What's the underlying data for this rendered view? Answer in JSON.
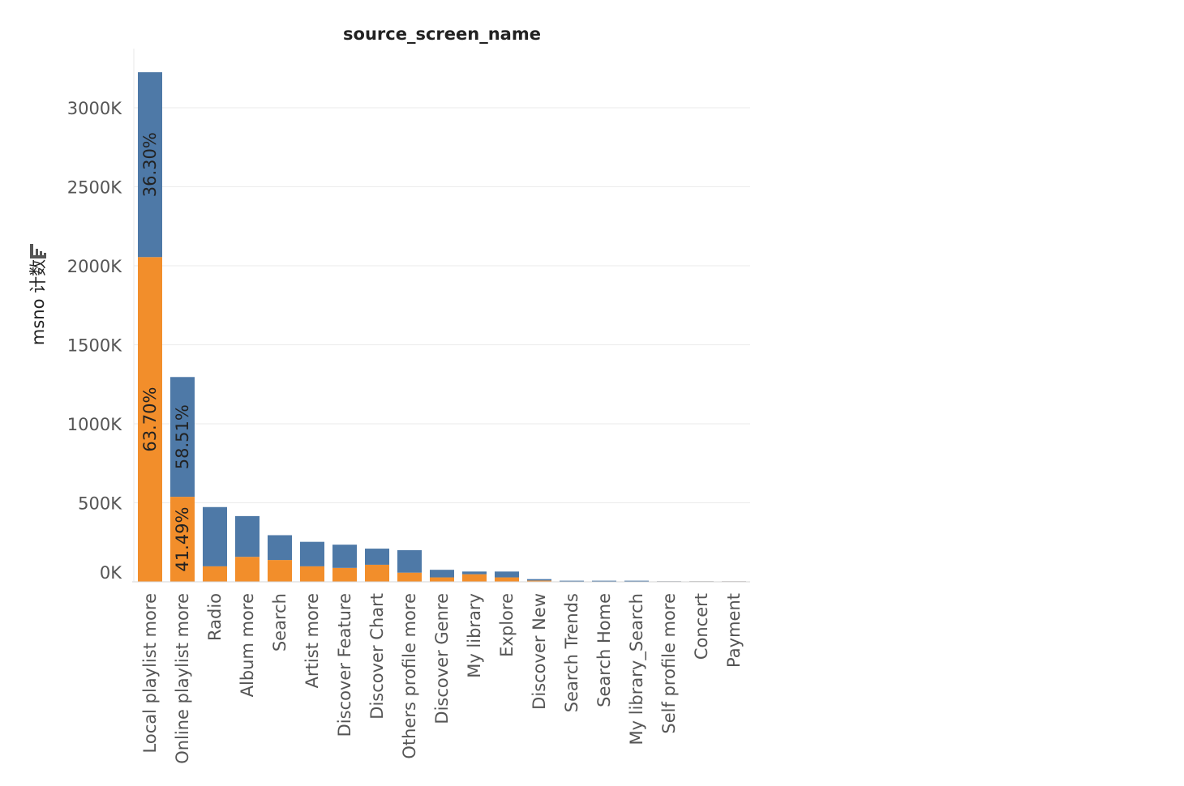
{
  "chart_data": {
    "type": "bar",
    "stacked": true,
    "title": "source_screen_name",
    "ylabel": "msno 计数",
    "xlabel": "",
    "ylim": [
      0,
      3300000
    ],
    "yticks": [
      0,
      500000,
      1000000,
      1500000,
      2000000,
      2500000,
      3000000
    ],
    "ytick_labels": [
      "0K",
      "500K",
      "1000K",
      "1500K",
      "2000K",
      "2500K",
      "3000K"
    ],
    "grid": true,
    "categories": [
      "Local playlist more",
      "Online playlist more",
      "Radio",
      "Album more",
      "Search",
      "Artist more",
      "Discover Feature",
      "Discover Chart",
      "Others profile more",
      "Discover Genre",
      "My library",
      "Explore",
      "Discover New",
      "Search Trends",
      "Search Home",
      "My library_Search",
      "Self profile more",
      "Concert",
      "Payment"
    ],
    "series": [
      {
        "color": "#f28e2b",
        "values": [
          2055000,
          538000,
          98000,
          158000,
          138000,
          98000,
          88000,
          108000,
          58000,
          28000,
          48000,
          28000,
          8000,
          2000,
          2000,
          2000,
          500,
          300,
          200
        ],
        "labels": [
          "63.70%",
          "41.49%",
          "",
          "",
          "",
          "",
          "",
          "",
          "",
          "",
          "",
          "",
          "",
          "",
          "",
          "",
          "",
          "",
          ""
        ]
      },
      {
        "color": "#4e79a7",
        "values": [
          1170000,
          758000,
          375000,
          258000,
          157000,
          155000,
          147000,
          102000,
          142000,
          48000,
          17000,
          37000,
          9000,
          5000,
          5000,
          5000,
          1000,
          500,
          300
        ],
        "labels": [
          "36.30%",
          "58.51%",
          "",
          "",
          "",
          "",
          "",
          "",
          "",
          "",
          "",
          "",
          "",
          "",
          "",
          "",
          "",
          "",
          ""
        ]
      }
    ]
  },
  "icons": {
    "ylabel_sort": "bar-sort-icon"
  }
}
